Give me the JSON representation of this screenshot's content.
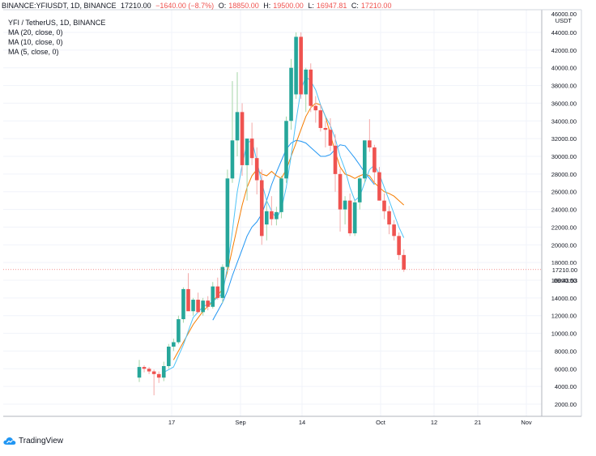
{
  "header": {
    "symbol": "BINANCE:YFIUSDT, 1D, BINANCE",
    "last": "17210.00",
    "change": "−1640.00 (−8.7%)",
    "open_label": "O:",
    "open": "18850.00",
    "high_label": "H:",
    "high": "19500.00",
    "low_label": "L:",
    "low": "16947.81",
    "close_label": "C:",
    "close": "17210.00"
  },
  "legend": {
    "title": "YFI / TetherUS, 1D, BINANCE",
    "ma20": "MA (20, close, 0)",
    "ma10": "MA (10, close, 0)",
    "ma5": "MA (5, close, 0)"
  },
  "price_axis": {
    "unit": "USDT",
    "top_tick": "46000.00",
    "current_price_label": "17210.00",
    "countdown_label": "09:43:53"
  },
  "branding": {
    "name": "TradingView"
  },
  "colors": {
    "up": "#26a69a",
    "down": "#ef5350",
    "ma20": "#2196f3",
    "ma10": "#f57c00",
    "ma5": "#4fc3f7",
    "grid": "#f0f3fa",
    "axis_text": "#131722"
  },
  "chart_data": {
    "type": "candlestick",
    "ylim": [
      0,
      46000
    ],
    "y_ticks": [
      2000,
      4000,
      6000,
      8000,
      10000,
      12000,
      14000,
      16000,
      18000,
      20000,
      22000,
      24000,
      26000,
      28000,
      30000,
      32000,
      34000,
      36000,
      38000,
      40000,
      42000,
      44000
    ],
    "x_ticks": [
      "17",
      "Sep",
      "14",
      "Oct",
      "12",
      "21",
      "Nov"
    ],
    "candles": [
      {
        "o": 5000,
        "h": 7000,
        "l": 4500,
        "c": 6200
      },
      {
        "o": 6200,
        "h": 6400,
        "l": 5600,
        "c": 6000
      },
      {
        "o": 6000,
        "h": 6200,
        "l": 5400,
        "c": 5700
      },
      {
        "o": 5700,
        "h": 5900,
        "l": 3000,
        "c": 5400
      },
      {
        "o": 5400,
        "h": 5700,
        "l": 4400,
        "c": 5000
      },
      {
        "o": 5000,
        "h": 6800,
        "l": 4600,
        "c": 6300
      },
      {
        "o": 6300,
        "h": 8800,
        "l": 6000,
        "c": 8500
      },
      {
        "o": 8500,
        "h": 9400,
        "l": 8000,
        "c": 9000
      },
      {
        "o": 9000,
        "h": 12000,
        "l": 8800,
        "c": 11600
      },
      {
        "o": 11600,
        "h": 15200,
        "l": 11200,
        "c": 15000
      },
      {
        "o": 15000,
        "h": 16800,
        "l": 12800,
        "c": 12500
      },
      {
        "o": 12500,
        "h": 14000,
        "l": 12000,
        "c": 13800
      },
      {
        "o": 13800,
        "h": 14600,
        "l": 12300,
        "c": 12400
      },
      {
        "o": 12400,
        "h": 14000,
        "l": 12000,
        "c": 13700
      },
      {
        "o": 13700,
        "h": 14200,
        "l": 12600,
        "c": 13000
      },
      {
        "o": 13000,
        "h": 15800,
        "l": 12800,
        "c": 15300
      },
      {
        "o": 15300,
        "h": 16300,
        "l": 13800,
        "c": 14000
      },
      {
        "o": 14000,
        "h": 17800,
        "l": 13400,
        "c": 17500
      },
      {
        "o": 17500,
        "h": 28500,
        "l": 17000,
        "c": 27500
      },
      {
        "o": 27500,
        "h": 38500,
        "l": 27000,
        "c": 31800
      },
      {
        "o": 31800,
        "h": 39500,
        "l": 30000,
        "c": 35000
      },
      {
        "o": 35000,
        "h": 36000,
        "l": 27800,
        "c": 29000
      },
      {
        "o": 29000,
        "h": 32000,
        "l": 25000,
        "c": 32000
      },
      {
        "o": 32000,
        "h": 33800,
        "l": 29000,
        "c": 29800
      },
      {
        "o": 29800,
        "h": 31000,
        "l": 25700,
        "c": 27300
      },
      {
        "o": 27300,
        "h": 28500,
        "l": 20000,
        "c": 21000
      },
      {
        "o": 22300,
        "h": 25000,
        "l": 20500,
        "c": 23800
      },
      {
        "o": 23800,
        "h": 25500,
        "l": 22200,
        "c": 22900
      },
      {
        "o": 22900,
        "h": 24300,
        "l": 22200,
        "c": 23700
      },
      {
        "o": 23700,
        "h": 27800,
        "l": 23000,
        "c": 27500
      },
      {
        "o": 27500,
        "h": 34500,
        "l": 27000,
        "c": 34000
      },
      {
        "o": 34000,
        "h": 41000,
        "l": 33000,
        "c": 40000
      },
      {
        "o": 37000,
        "h": 44000,
        "l": 36500,
        "c": 43500
      },
      {
        "o": 43500,
        "h": 44000,
        "l": 36500,
        "c": 37000
      },
      {
        "o": 37000,
        "h": 40000,
        "l": 35000,
        "c": 39800
      },
      {
        "o": 39800,
        "h": 40500,
        "l": 35000,
        "c": 35700
      },
      {
        "o": 35700,
        "h": 36800,
        "l": 33800,
        "c": 35200
      },
      {
        "o": 35200,
        "h": 35800,
        "l": 32800,
        "c": 33200
      },
      {
        "o": 33200,
        "h": 34000,
        "l": 31000,
        "c": 33000
      },
      {
        "o": 33000,
        "h": 34300,
        "l": 30600,
        "c": 31200
      },
      {
        "o": 31200,
        "h": 32500,
        "l": 26000,
        "c": 28000
      },
      {
        "o": 28000,
        "h": 28600,
        "l": 21500,
        "c": 24000
      },
      {
        "o": 24000,
        "h": 25500,
        "l": 22300,
        "c": 25000
      },
      {
        "o": 25000,
        "h": 25800,
        "l": 21000,
        "c": 21300
      },
      {
        "o": 21300,
        "h": 25000,
        "l": 21000,
        "c": 24800
      },
      {
        "o": 24800,
        "h": 27700,
        "l": 24000,
        "c": 27500
      },
      {
        "o": 27500,
        "h": 31800,
        "l": 27000,
        "c": 31800
      },
      {
        "o": 31800,
        "h": 34200,
        "l": 30500,
        "c": 31000
      },
      {
        "o": 31000,
        "h": 31300,
        "l": 27000,
        "c": 28200
      },
      {
        "o": 28200,
        "h": 28800,
        "l": 25000,
        "c": 25000
      },
      {
        "o": 25000,
        "h": 25800,
        "l": 22900,
        "c": 23800
      },
      {
        "o": 23800,
        "h": 24400,
        "l": 21200,
        "c": 22300
      },
      {
        "o": 22300,
        "h": 22800,
        "l": 20500,
        "c": 21000
      },
      {
        "o": 21000,
        "h": 21400,
        "l": 18300,
        "c": 18850
      },
      {
        "o": 18850,
        "h": 19500,
        "l": 16947.81,
        "c": 17210
      }
    ],
    "ma5": [
      {
        "i": 5,
        "v": 5600
      },
      {
        "i": 7,
        "v": 6200
      },
      {
        "i": 9,
        "v": 8700
      },
      {
        "i": 11,
        "v": 11800
      },
      {
        "i": 13,
        "v": 13000
      },
      {
        "i": 15,
        "v": 13600
      },
      {
        "i": 17,
        "v": 14500
      },
      {
        "i": 18,
        "v": 17500
      },
      {
        "i": 19,
        "v": 21500
      },
      {
        "i": 20,
        "v": 26000
      },
      {
        "i": 21,
        "v": 29000
      },
      {
        "i": 22,
        "v": 31500
      },
      {
        "i": 23,
        "v": 31800
      },
      {
        "i": 24,
        "v": 29500
      },
      {
        "i": 25,
        "v": 27000
      },
      {
        "i": 26,
        "v": 25000
      },
      {
        "i": 27,
        "v": 23800
      },
      {
        "i": 28,
        "v": 23000
      },
      {
        "i": 29,
        "v": 24000
      },
      {
        "i": 30,
        "v": 26500
      },
      {
        "i": 31,
        "v": 30000
      },
      {
        "i": 32,
        "v": 34000
      },
      {
        "i": 33,
        "v": 37500
      },
      {
        "i": 34,
        "v": 39000
      },
      {
        "i": 35,
        "v": 38500
      },
      {
        "i": 36,
        "v": 37500
      },
      {
        "i": 37,
        "v": 35800
      },
      {
        "i": 38,
        "v": 34500
      },
      {
        "i": 39,
        "v": 33500
      },
      {
        "i": 40,
        "v": 32000
      },
      {
        "i": 41,
        "v": 30000
      },
      {
        "i": 42,
        "v": 28500
      },
      {
        "i": 43,
        "v": 26500
      },
      {
        "i": 44,
        "v": 25000
      },
      {
        "i": 45,
        "v": 25500
      },
      {
        "i": 46,
        "v": 27000
      },
      {
        "i": 47,
        "v": 28500
      },
      {
        "i": 48,
        "v": 29000
      },
      {
        "i": 49,
        "v": 28000
      },
      {
        "i": 50,
        "v": 26500
      },
      {
        "i": 51,
        "v": 25000
      },
      {
        "i": 52,
        "v": 23500
      },
      {
        "i": 53,
        "v": 22000
      },
      {
        "i": 54,
        "v": 20800
      }
    ],
    "ma10": [
      {
        "i": 7,
        "v": 7000
      },
      {
        "i": 9,
        "v": 9000
      },
      {
        "i": 11,
        "v": 11000
      },
      {
        "i": 13,
        "v": 12500
      },
      {
        "i": 15,
        "v": 13600
      },
      {
        "i": 17,
        "v": 15000
      },
      {
        "i": 18,
        "v": 17000
      },
      {
        "i": 19,
        "v": 19500
      },
      {
        "i": 20,
        "v": 22000
      },
      {
        "i": 21,
        "v": 24500
      },
      {
        "i": 22,
        "v": 26500
      },
      {
        "i": 23,
        "v": 27800
      },
      {
        "i": 24,
        "v": 28500
      },
      {
        "i": 25,
        "v": 28000
      },
      {
        "i": 26,
        "v": 27800
      },
      {
        "i": 27,
        "v": 28300
      },
      {
        "i": 28,
        "v": 27800
      },
      {
        "i": 29,
        "v": 27500
      },
      {
        "i": 30,
        "v": 28500
      },
      {
        "i": 31,
        "v": 30000
      },
      {
        "i": 32,
        "v": 31500
      },
      {
        "i": 33,
        "v": 33000
      },
      {
        "i": 34,
        "v": 34500
      },
      {
        "i": 35,
        "v": 35500
      },
      {
        "i": 36,
        "v": 36000
      },
      {
        "i": 37,
        "v": 35800
      },
      {
        "i": 38,
        "v": 34500
      },
      {
        "i": 39,
        "v": 32500
      },
      {
        "i": 40,
        "v": 30500
      },
      {
        "i": 41,
        "v": 28800
      },
      {
        "i": 42,
        "v": 28000
      },
      {
        "i": 43,
        "v": 27800
      },
      {
        "i": 44,
        "v": 27500
      },
      {
        "i": 45,
        "v": 27800
      },
      {
        "i": 46,
        "v": 28000
      },
      {
        "i": 47,
        "v": 27800
      },
      {
        "i": 48,
        "v": 27000
      },
      {
        "i": 49,
        "v": 26500
      },
      {
        "i": 50,
        "v": 26000
      },
      {
        "i": 51,
        "v": 25800
      },
      {
        "i": 52,
        "v": 25500
      },
      {
        "i": 53,
        "v": 25000
      },
      {
        "i": 54,
        "v": 24500
      }
    ],
    "ma20": [
      {
        "i": 15,
        "v": 11500
      },
      {
        "i": 17,
        "v": 13500
      },
      {
        "i": 18,
        "v": 14800
      },
      {
        "i": 19,
        "v": 16500
      },
      {
        "i": 20,
        "v": 18000
      },
      {
        "i": 21,
        "v": 19500
      },
      {
        "i": 22,
        "v": 21000
      },
      {
        "i": 23,
        "v": 22000
      },
      {
        "i": 24,
        "v": 22600
      },
      {
        "i": 25,
        "v": 23500
      },
      {
        "i": 26,
        "v": 25000
      },
      {
        "i": 27,
        "v": 26800
      },
      {
        "i": 28,
        "v": 28200
      },
      {
        "i": 29,
        "v": 29500
      },
      {
        "i": 30,
        "v": 30800
      },
      {
        "i": 31,
        "v": 31500
      },
      {
        "i": 32,
        "v": 31800
      },
      {
        "i": 33,
        "v": 31700
      },
      {
        "i": 34,
        "v": 31500
      },
      {
        "i": 35,
        "v": 31000
      },
      {
        "i": 36,
        "v": 30500
      },
      {
        "i": 37,
        "v": 30000
      },
      {
        "i": 38,
        "v": 30000
      },
      {
        "i": 39,
        "v": 30200
      },
      {
        "i": 40,
        "v": 30800
      },
      {
        "i": 41,
        "v": 31300
      },
      {
        "i": 42,
        "v": 31200
      },
      {
        "i": 43,
        "v": 30500
      },
      {
        "i": 44,
        "v": 29800
      },
      {
        "i": 45,
        "v": 29000
      },
      {
        "i": 46,
        "v": 28200
      },
      {
        "i": 47,
        "v": 27500
      },
      {
        "i": 48,
        "v": 26800
      }
    ]
  }
}
